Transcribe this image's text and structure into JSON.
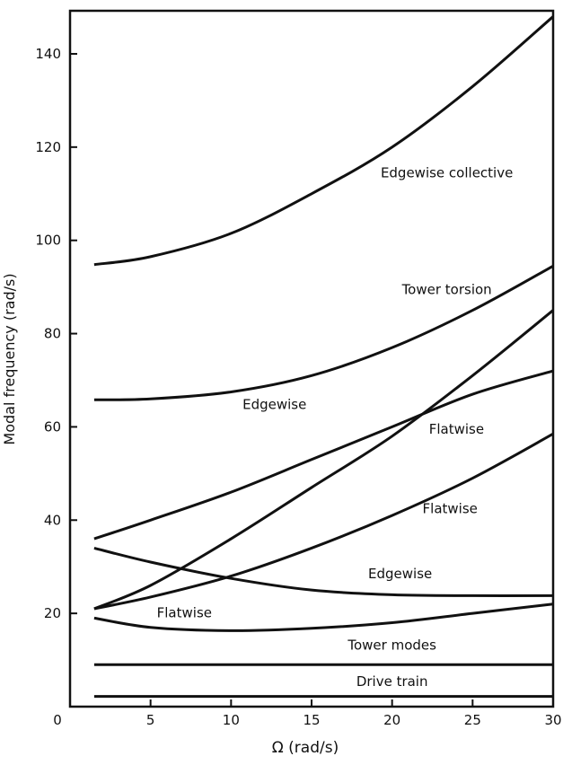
{
  "chart_data": {
    "type": "line",
    "title": "",
    "xlabel": "Ω (rad/s)",
    "ylabel": "Modal frequency (rad/s)",
    "xlim": [
      0,
      30
    ],
    "ylim": [
      0,
      150
    ],
    "xticks": [
      0,
      5,
      10,
      15,
      20,
      25,
      30
    ],
    "yticks": [
      20,
      40,
      60,
      80,
      100,
      120,
      140
    ],
    "ytick_labels_shown": [
      "0",
      "20",
      "40",
      "60",
      "80",
      "100",
      "120",
      "140"
    ],
    "grid": false,
    "legend": "none",
    "line_color": "#111111",
    "series": [
      {
        "x": [
          1.5,
          5,
          10,
          15,
          20,
          25,
          30
        ],
        "y": [
          94.8,
          96.5,
          101.5,
          110,
          120,
          133,
          148
        ]
      },
      {
        "x": [
          1.5,
          5,
          10,
          15,
          20,
          25,
          30
        ],
        "y": [
          65.8,
          66,
          67.5,
          71,
          77,
          85,
          94.5
        ]
      },
      {
        "x": [
          1.5,
          5,
          10,
          15,
          20,
          25,
          30
        ],
        "y": [
          36,
          40,
          46,
          53,
          60,
          67,
          72
        ]
      },
      {
        "x": [
          1.5,
          5,
          10,
          15,
          20,
          25,
          30
        ],
        "y": [
          21,
          26,
          36,
          47,
          58,
          71,
          85
        ]
      },
      {
        "x": [
          1.5,
          5,
          10,
          15,
          20,
          25,
          30
        ],
        "y": [
          21,
          23.5,
          28,
          34,
          41,
          49,
          58.5
        ]
      },
      {
        "x": [
          1.5,
          5,
          10,
          15,
          20,
          25,
          30
        ],
        "y": [
          34,
          31,
          27.5,
          25,
          24,
          23.8,
          23.8
        ]
      },
      {
        "x": [
          1.5,
          5,
          10,
          15,
          20,
          25,
          30
        ],
        "y": [
          19,
          17,
          16.3,
          16.8,
          18,
          20,
          22
        ]
      },
      {
        "x": [
          1.5,
          30
        ],
        "y": [
          9,
          9
        ]
      },
      {
        "x": [
          1.5,
          30
        ],
        "y": [
          2.2,
          2.2
        ]
      }
    ],
    "annotations": [
      {
        "text": "Edgewise collective",
        "x": 23.4,
        "y": 113.5
      },
      {
        "text": "Tower torsion",
        "x": 23.4,
        "y": 88.5
      },
      {
        "text": "Edgewise",
        "x": 12.7,
        "y": 63.8
      },
      {
        "text": "Flatwise",
        "x": 24.0,
        "y": 58.5
      },
      {
        "text": "Flatwise",
        "x": 23.6,
        "y": 41.5
      },
      {
        "text": "Edgewise",
        "x": 20.5,
        "y": 27.5
      },
      {
        "text": "Flatwise",
        "x": 7.1,
        "y": 19.2
      },
      {
        "text": "Tower modes",
        "x": 20.0,
        "y": 12.2
      },
      {
        "text": "Drive train",
        "x": 20.0,
        "y": 4.4
      }
    ]
  }
}
